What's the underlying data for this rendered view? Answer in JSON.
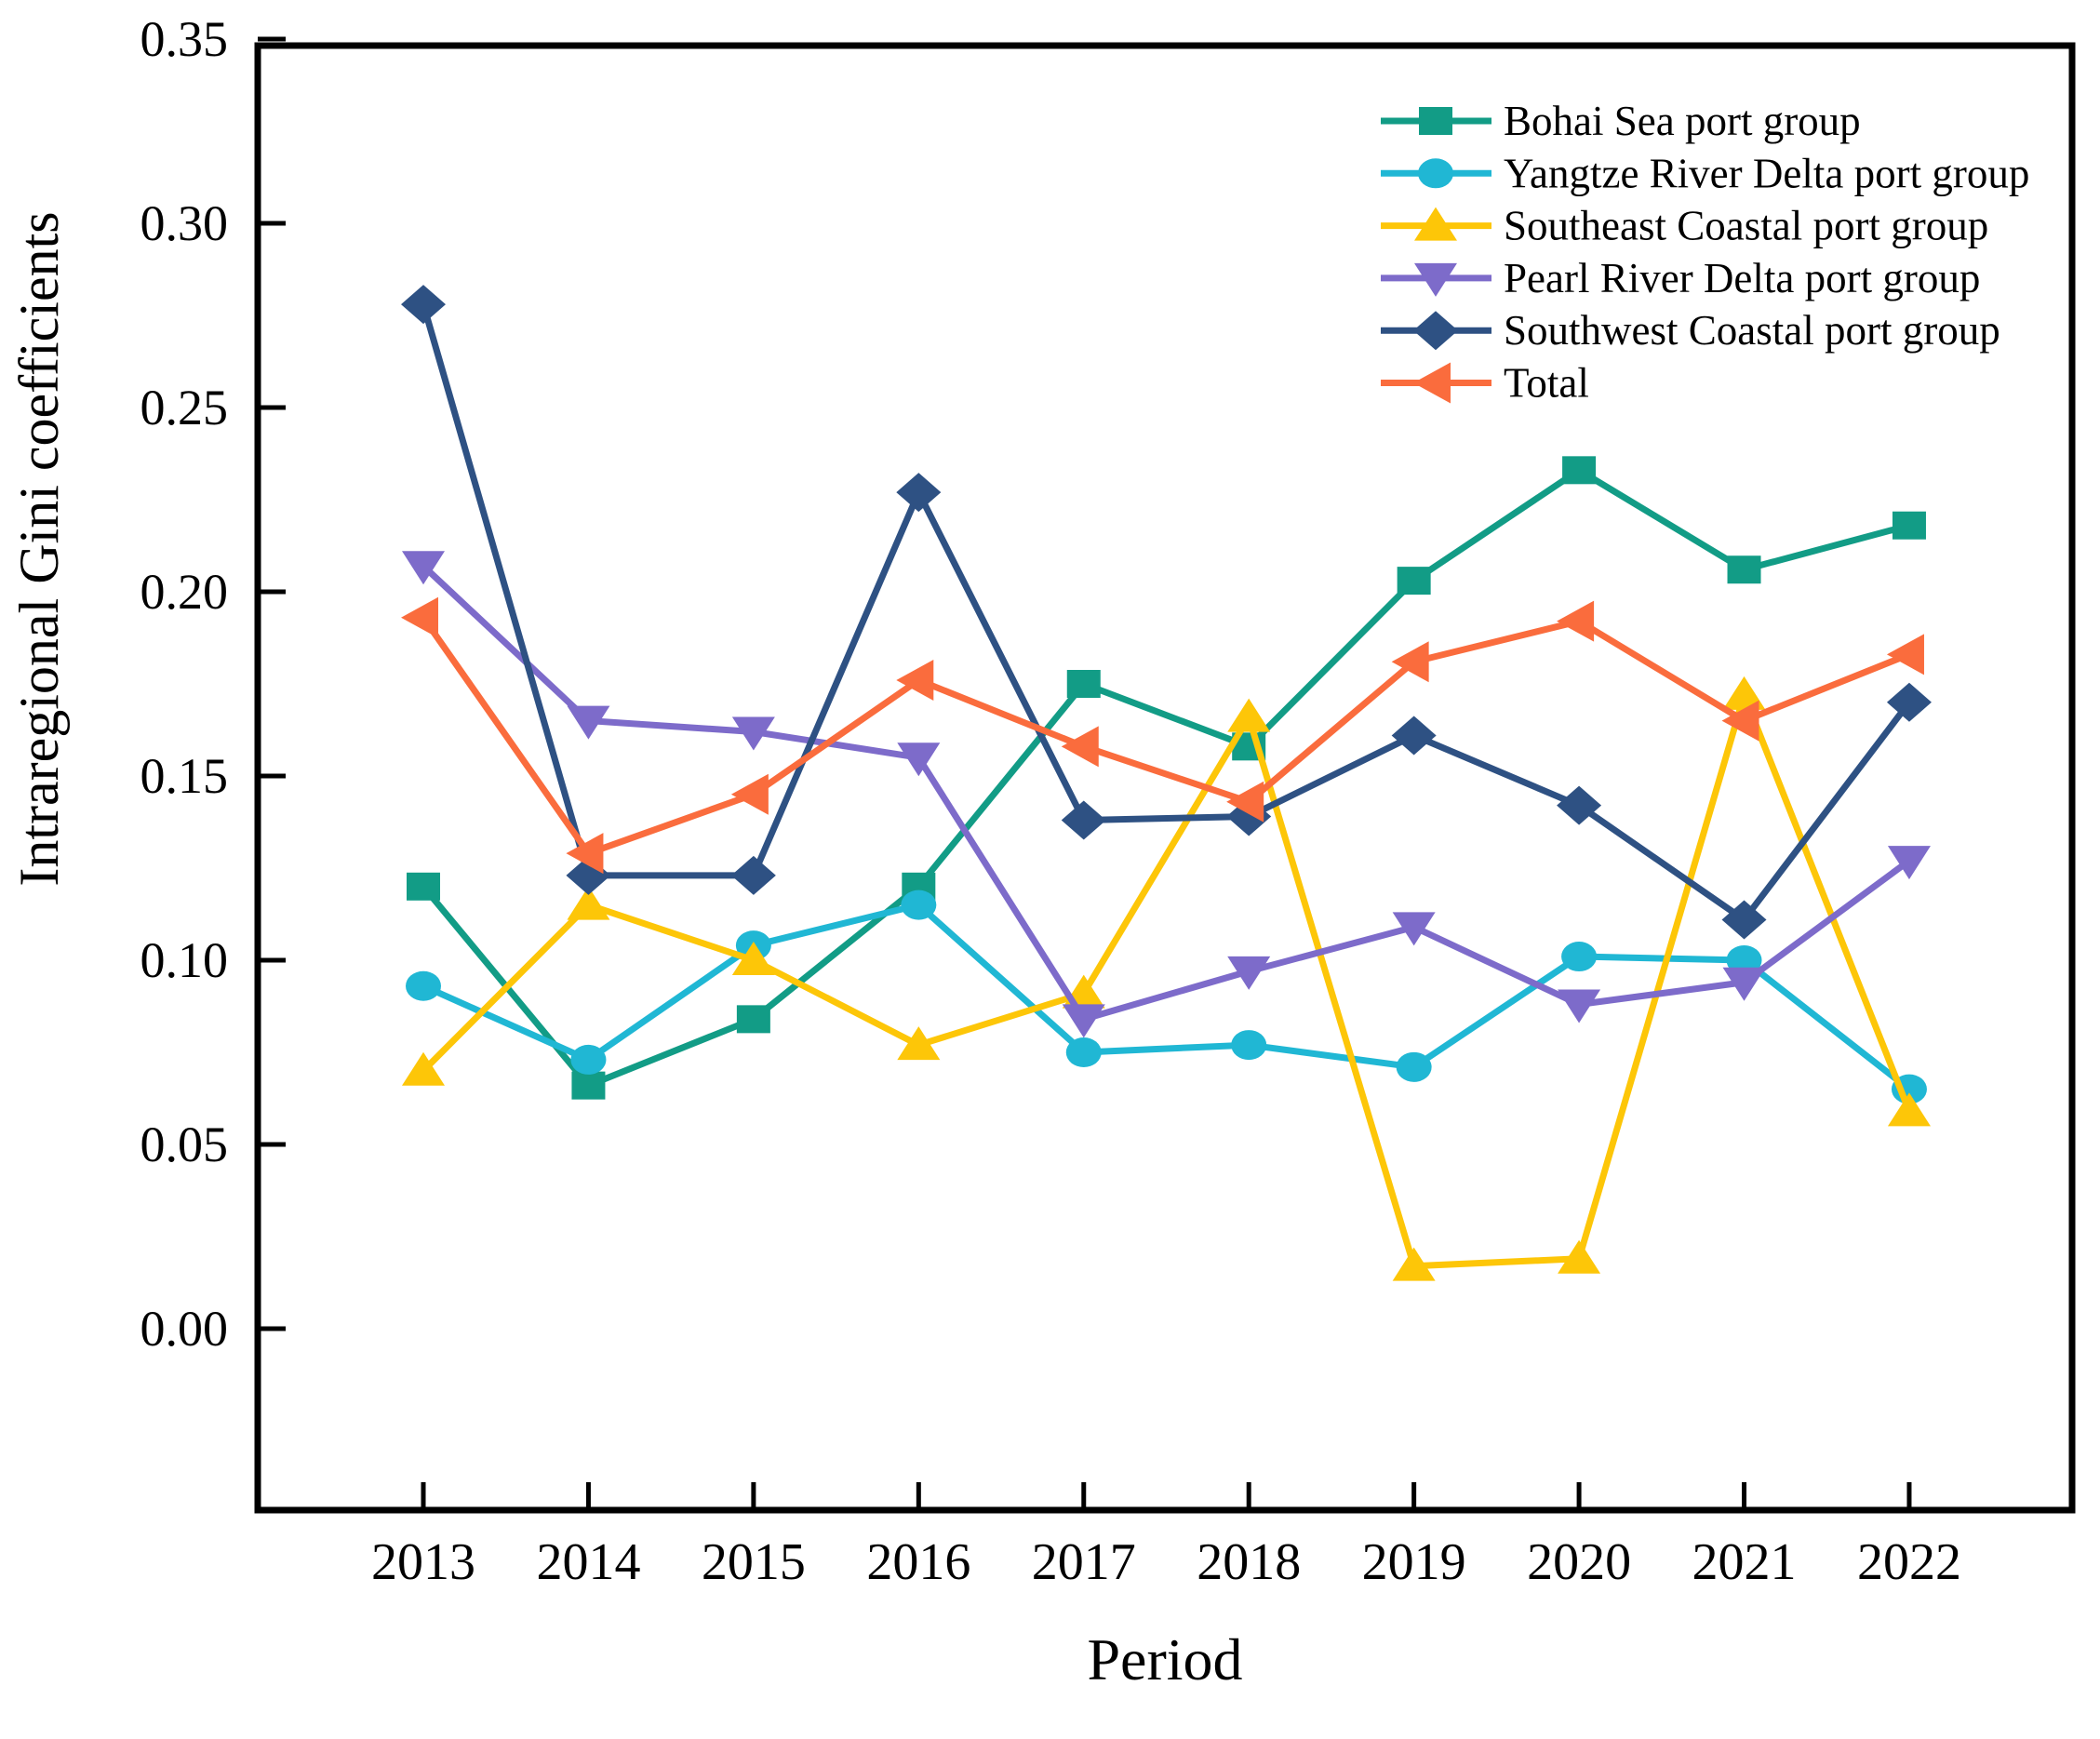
{
  "figure": {
    "background": "#ffffff",
    "frame_color": "#000000"
  },
  "chart_data": {
    "type": "line",
    "title": "",
    "xlabel": "Period",
    "ylabel": "Intraregional Gini coefficients",
    "categories": [
      "2013",
      "2014",
      "2015",
      "2016",
      "2017",
      "2018",
      "2019",
      "2020",
      "2021",
      "2022"
    ],
    "ylim": [
      -0.05,
      0.352
    ],
    "ytick_values": [
      0.0,
      0.05,
      0.1,
      0.15,
      0.2,
      0.25,
      0.3,
      0.35
    ],
    "ytick_labels": [
      "0.00",
      "0.05",
      "0.10",
      "0.15",
      "0.20",
      "0.25",
      "0.30",
      "0.35"
    ],
    "grid": false,
    "legend_position": "upper-right-inside",
    "series": [
      {
        "name": "Bohai Sea port group",
        "color": "#129c86",
        "marker": "square",
        "values": [
          0.12,
          0.066,
          0.084,
          0.12,
          0.175,
          0.158,
          0.203,
          0.233,
          0.206,
          0.218
        ]
      },
      {
        "name": "Yangtze River Delta port group",
        "color": "#20b7d4",
        "marker": "circle",
        "values": [
          0.093,
          0.073,
          0.104,
          0.115,
          0.075,
          0.077,
          0.071,
          0.101,
          0.1,
          0.065
        ]
      },
      {
        "name": "Southeast Coastal port group",
        "color": "#fdc608",
        "marker": "triangle-up",
        "values": [
          0.07,
          0.115,
          0.1,
          0.077,
          0.091,
          0.166,
          0.017,
          0.019,
          0.172,
          0.059
        ]
      },
      {
        "name": "Pearl River Delta port group",
        "color": "#7d6bca",
        "marker": "triangle-down",
        "values": [
          0.207,
          0.165,
          0.162,
          0.155,
          0.084,
          0.097,
          0.109,
          0.088,
          0.094,
          0.127
        ]
      },
      {
        "name": "Southwest Coastal port group",
        "color": "#2e5183",
        "marker": "diamond",
        "values": [
          0.278,
          0.123,
          0.123,
          0.227,
          0.138,
          0.139,
          0.161,
          0.142,
          0.111,
          0.17
        ]
      },
      {
        "name": "Total",
        "color": "#fa6c3d",
        "marker": "triangle-left",
        "values": [
          0.193,
          0.129,
          0.145,
          0.176,
          0.158,
          0.143,
          0.181,
          0.192,
          0.165,
          0.183
        ]
      }
    ]
  }
}
